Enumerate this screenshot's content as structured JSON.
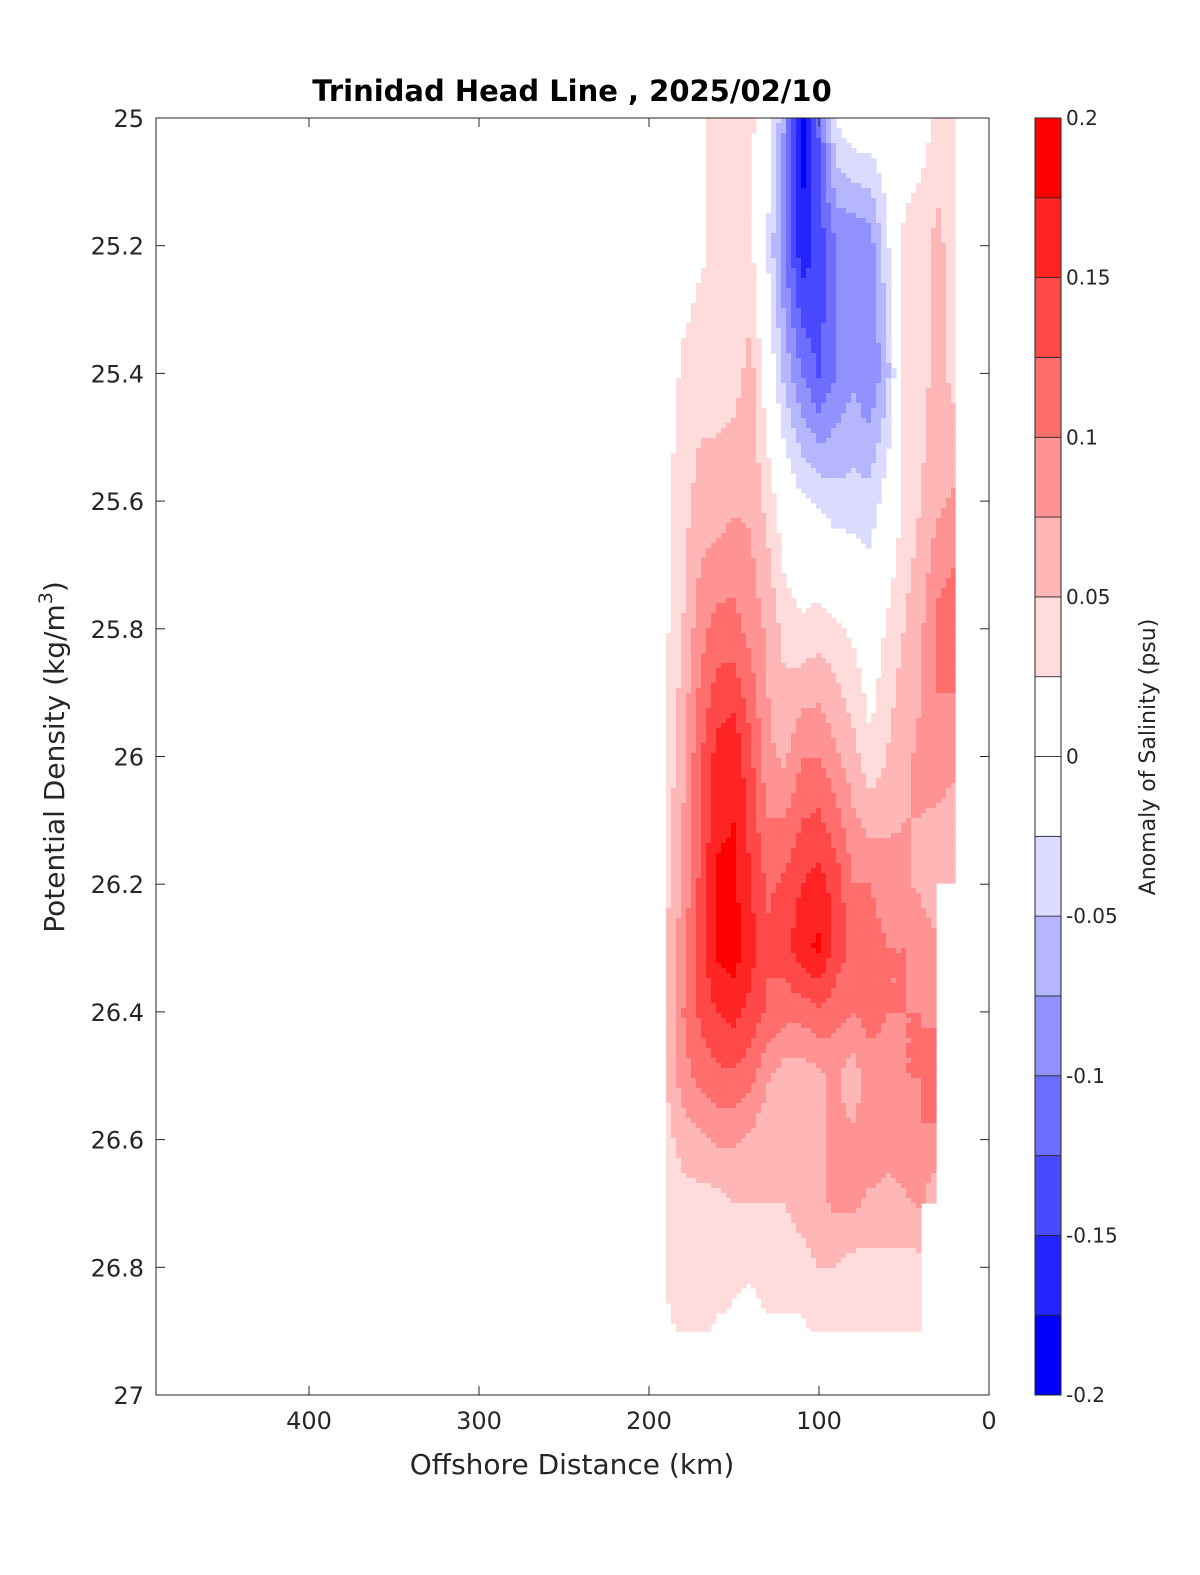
{
  "chart_data": {
    "type": "contour",
    "title": "Trinidad Head Line , 2025/02/10",
    "xlabel": "Offshore Distance (km)",
    "ylabel": "Potential Density (kg/m3)",
    "ylabel_main": "Potential Density (kg/m",
    "ylabel_sup": "3",
    "ylabel_close": ")",
    "xlim": [
      490,
      0
    ],
    "x_reversed": true,
    "ylim": [
      25,
      27
    ],
    "y_reversed": true,
    "xticks": [
      "400",
      "300",
      "200",
      "100",
      "0"
    ],
    "xtick_values": [
      400,
      300,
      200,
      100,
      0
    ],
    "yticks": [
      "25",
      "25.2",
      "25.4",
      "25.6",
      "25.8",
      "26",
      "26.2",
      "26.4",
      "26.6",
      "26.8",
      "27"
    ],
    "ytick_values": [
      25,
      25.2,
      25.4,
      25.6,
      25.8,
      26,
      26.2,
      26.4,
      26.6,
      26.8,
      27
    ],
    "grid": false,
    "colorbar": {
      "label": "Anomaly of Salinity (psu)",
      "range": [
        -0.2,
        0.2
      ],
      "level_step": 0.025,
      "ticks": [
        "0.2",
        "0.15",
        "0.1",
        "0.05",
        "0",
        "-0.05",
        "-0.1",
        "-0.15",
        "-0.2"
      ],
      "tick_values": [
        0.2,
        0.15,
        0.1,
        0.05,
        0,
        -0.05,
        -0.1,
        -0.15,
        -0.2
      ],
      "colormap": "blue-white-red",
      "positive_color": "#ff0000",
      "negative_color": "#0000ff",
      "zero_color": "#ffffff"
    },
    "x": [
      190,
      180,
      170,
      160,
      150,
      140,
      130,
      120,
      110,
      100,
      90,
      80,
      70,
      60,
      50,
      40,
      30,
      20
    ],
    "y": [
      25.0,
      25.2,
      25.4,
      25.6,
      25.8,
      26.0,
      26.2,
      26.3,
      26.4,
      26.5,
      26.6,
      26.7,
      26.8,
      26.9
    ],
    "z": [
      [
        0.01,
        0.01,
        0.02,
        0.03,
        0.03,
        0.03,
        0.0,
        -0.08,
        -0.19,
        -0.12,
        -0.02,
        0.0,
        0.0,
        0.0,
        0.01,
        0.01,
        0.03,
        0.03
      ],
      [
        0.01,
        0.01,
        0.02,
        0.03,
        0.03,
        0.03,
        -0.03,
        -0.1,
        -0.17,
        -0.14,
        -0.1,
        -0.1,
        -0.09,
        -0.03,
        0.03,
        0.04,
        0.06,
        0.03
      ],
      [
        0.01,
        0.03,
        0.04,
        0.04,
        0.04,
        0.06,
        0.0,
        -0.06,
        -0.1,
        -0.13,
        -0.1,
        -0.08,
        -0.1,
        -0.06,
        0.03,
        0.04,
        0.06,
        0.04
      ],
      [
        0.02,
        0.04,
        0.06,
        0.06,
        0.07,
        0.07,
        0.04,
        0.0,
        -0.02,
        -0.03,
        -0.04,
        -0.04,
        -0.04,
        -0.01,
        0.03,
        0.05,
        0.07,
        0.08
      ],
      [
        0.02,
        0.05,
        0.09,
        0.11,
        0.11,
        0.09,
        0.07,
        0.04,
        0.03,
        0.04,
        0.03,
        0.02,
        0.0,
        0.03,
        0.05,
        0.07,
        0.11,
        0.12
      ],
      [
        0.03,
        0.07,
        0.12,
        0.16,
        0.17,
        0.13,
        0.08,
        0.07,
        0.1,
        0.1,
        0.08,
        0.06,
        0.03,
        0.05,
        0.07,
        0.08,
        0.09,
        0.08
      ],
      [
        0.04,
        0.08,
        0.13,
        0.18,
        0.18,
        0.15,
        0.12,
        0.13,
        0.15,
        0.16,
        0.14,
        0.1,
        0.1,
        0.09,
        0.08,
        0.07,
        0.05,
        0.05
      ],
      [
        0.05,
        0.09,
        0.14,
        0.18,
        0.19,
        0.16,
        0.13,
        0.14,
        0.17,
        0.18,
        0.14,
        0.12,
        0.11,
        0.1,
        0.1,
        0.09,
        0.08,
        null
      ],
      [
        0.05,
        0.1,
        0.13,
        0.15,
        0.16,
        0.14,
        0.12,
        0.11,
        0.11,
        0.12,
        0.11,
        0.1,
        0.11,
        0.1,
        0.1,
        0.1,
        0.09,
        null
      ],
      [
        0.05,
        0.09,
        0.11,
        0.12,
        0.12,
        0.11,
        0.08,
        0.06,
        0.06,
        0.07,
        0.08,
        0.06,
        0.09,
        0.09,
        0.1,
        0.1,
        0.13,
        null
      ],
      [
        0.04,
        0.06,
        0.07,
        0.08,
        0.08,
        0.07,
        0.05,
        0.05,
        0.06,
        0.07,
        0.08,
        0.08,
        0.09,
        0.08,
        0.09,
        0.1,
        0.09,
        null
      ],
      [
        0.03,
        0.04,
        0.04,
        0.04,
        0.05,
        0.05,
        0.05,
        0.05,
        0.06,
        0.07,
        0.08,
        0.08,
        0.07,
        0.07,
        0.07,
        0.08,
        0.05,
        null
      ],
      [
        0.03,
        0.03,
        0.04,
        0.04,
        0.03,
        0.03,
        0.04,
        0.04,
        0.04,
        0.05,
        0.05,
        0.04,
        0.04,
        0.04,
        0.04,
        0.04,
        null,
        null
      ],
      [
        0.02,
        0.03,
        0.03,
        0.02,
        0.02,
        0.01,
        0.02,
        0.02,
        0.02,
        0.03,
        0.03,
        0.03,
        0.03,
        0.03,
        0.03,
        0.03,
        null,
        null
      ]
    ]
  }
}
